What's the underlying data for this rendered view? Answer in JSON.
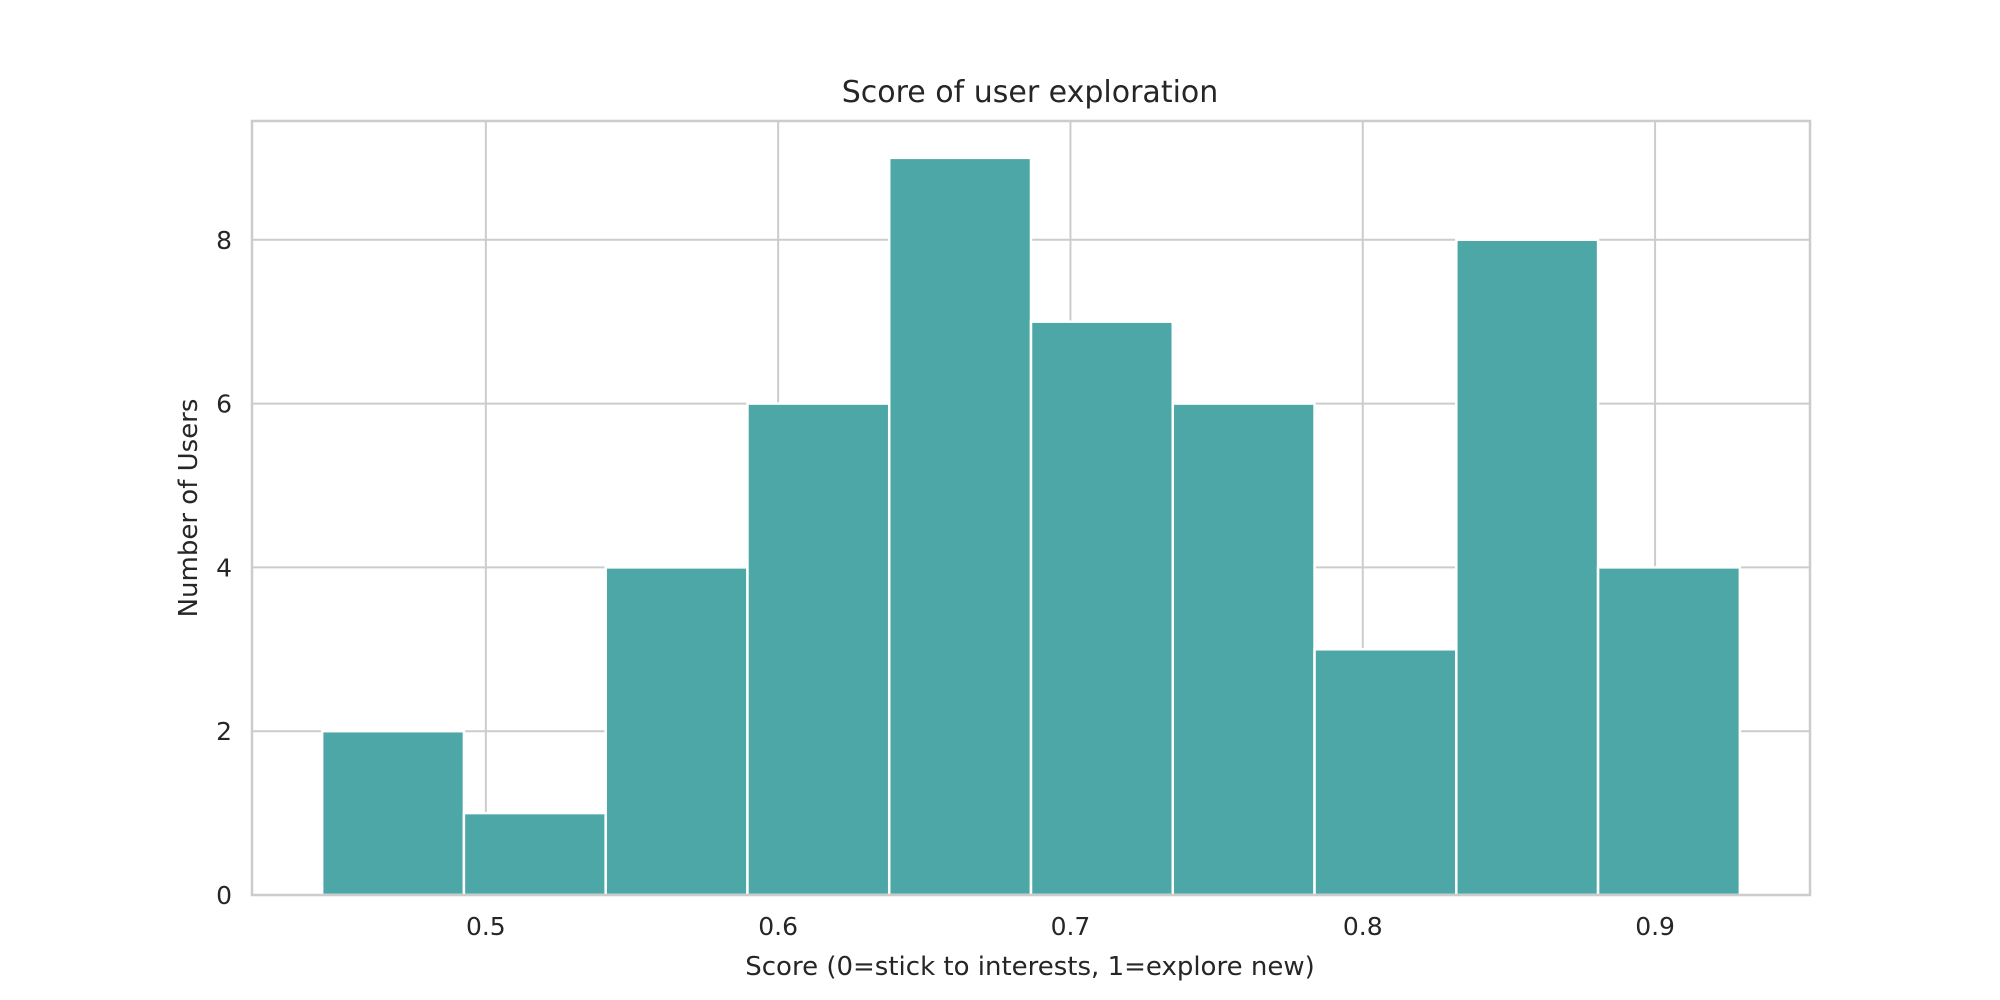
{
  "chart_data": {
    "type": "bar",
    "title": "Score of user exploration",
    "xlabel": "Score (0=stick to interests, 1=explore new)",
    "ylabel": "Number of Users",
    "xlim": [
      0.42,
      0.953
    ],
    "ylim": [
      0,
      9.45
    ],
    "x_ticks": [
      0.5,
      0.6,
      0.7,
      0.8,
      0.9
    ],
    "x_tick_labels": [
      "0.5",
      "0.6",
      "0.7",
      "0.8",
      "0.9"
    ],
    "y_ticks": [
      0,
      2,
      4,
      6,
      8
    ],
    "y_tick_labels": [
      "0",
      "2",
      "4",
      "6",
      "8"
    ],
    "bin_edges": [
      0.444,
      0.4925,
      0.541,
      0.5895,
      0.638,
      0.6865,
      0.735,
      0.7835,
      0.832,
      0.8805,
      0.929
    ],
    "values": [
      2,
      1,
      4,
      6,
      9,
      7,
      6,
      3,
      8,
      4
    ],
    "grid": true,
    "legend": "none",
    "colors": {
      "bar": "#4ba6a6",
      "bar_edge": "#ffffff",
      "grid": "#cccccc"
    }
  }
}
